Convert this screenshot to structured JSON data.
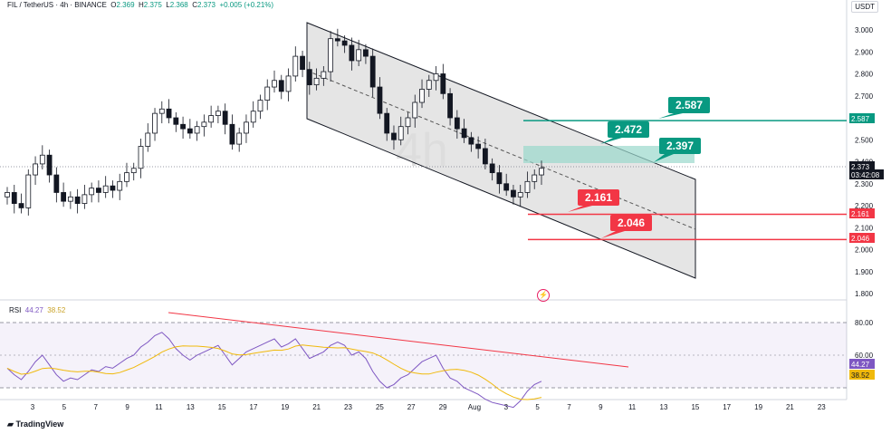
{
  "header": {
    "symbol": "FIL / TetherUS · 4h · BINANCE",
    "o_label": "O",
    "o_value": "2.369",
    "h_label": "H",
    "h_value": "2.375",
    "l_label": "L",
    "l_value": "2.368",
    "c_label": "C",
    "c_value": "2.373",
    "change": "+0.005 (+0.21%)"
  },
  "quote_currency": "USDT",
  "watermark": "4h",
  "footer_brand": "TradingView",
  "rsi": {
    "label": "RSI",
    "value": "44.27",
    "ma_value": "38.52"
  },
  "price_axis": {
    "ticks": [
      "3.000",
      "2.900",
      "2.800",
      "2.700",
      "2.600",
      "2.500",
      "2.400",
      "2.300",
      "2.200",
      "2.100",
      "2.000",
      "1.900",
      "1.800"
    ],
    "tags": [
      {
        "value": "2.587",
        "color": "#089981"
      },
      {
        "value": "2.373",
        "color": "#131722"
      },
      {
        "value": "03:42:08",
        "color": "#131722"
      },
      {
        "value": "2.161",
        "color": "#f23645"
      },
      {
        "value": "2.046",
        "color": "#f23645"
      }
    ]
  },
  "rsi_axis": {
    "ticks": [
      "80.00",
      "60.00"
    ],
    "tags": [
      "44.27",
      "38.52"
    ]
  },
  "time_axis": [
    "3",
    "5",
    "7",
    "9",
    "11",
    "13",
    "15",
    "17",
    "19",
    "21",
    "23",
    "25",
    "27",
    "29",
    "Aug",
    "3",
    "5",
    "7",
    "9",
    "11",
    "13",
    "15",
    "17",
    "19",
    "21",
    "23"
  ],
  "colors": {
    "up": "#089981",
    "down": "#f23645",
    "rsi": "#7e57c2",
    "rsi_ma": "#f0b90b"
  },
  "chart_data": {
    "type": "candlestick",
    "symbol": "FIL/USDT",
    "timeframe": "4h",
    "ylim": [
      1.75,
      3.05
    ],
    "last_price": 2.373,
    "close_path": [
      2.26,
      2.21,
      2.19,
      2.34,
      2.39,
      2.43,
      2.34,
      2.26,
      2.22,
      2.24,
      2.21,
      2.25,
      2.28,
      2.26,
      2.29,
      2.27,
      2.31,
      2.35,
      2.37,
      2.47,
      2.53,
      2.62,
      2.64,
      2.6,
      2.57,
      2.55,
      2.53,
      2.56,
      2.58,
      2.61,
      2.63,
      2.57,
      2.48,
      2.53,
      2.58,
      2.63,
      2.68,
      2.74,
      2.77,
      2.72,
      2.79,
      2.88,
      2.82,
      2.75,
      2.78,
      2.81,
      2.96,
      2.95,
      2.93,
      2.86,
      2.91,
      2.88,
      2.74,
      2.62,
      2.53,
      2.5,
      2.56,
      2.6,
      2.67,
      2.73,
      2.77,
      2.8,
      2.71,
      2.6,
      2.55,
      2.51,
      2.48,
      2.46,
      2.39,
      2.35,
      2.3,
      2.27,
      2.24,
      2.26,
      2.31,
      2.34,
      2.37
    ],
    "levels": [
      {
        "label": "2.587",
        "value": 2.587,
        "kind": "resistance"
      },
      {
        "label": "2.472",
        "value": 2.472,
        "kind": "resistance"
      },
      {
        "label": "2.397",
        "value": 2.397,
        "kind": "resistance"
      },
      {
        "label": "2.161",
        "value": 2.161,
        "kind": "support"
      },
      {
        "label": "2.046",
        "value": 2.046,
        "kind": "support"
      }
    ],
    "rsi_series": [
      52,
      48,
      45,
      50,
      56,
      60,
      54,
      48,
      44,
      46,
      45,
      48,
      51,
      50,
      53,
      52,
      55,
      58,
      60,
      65,
      68,
      72,
      74,
      70,
      64,
      60,
      57,
      60,
      62,
      64,
      66,
      60,
      54,
      58,
      62,
      64,
      66,
      68,
      70,
      65,
      67,
      70,
      64,
      58,
      60,
      62,
      66,
      68,
      66,
      60,
      62,
      58,
      50,
      44,
      40,
      42,
      46,
      48,
      52,
      56,
      58,
      60,
      52,
      46,
      44,
      40,
      38,
      36,
      33,
      31,
      30,
      29,
      28,
      32,
      38,
      42,
      44
    ]
  }
}
